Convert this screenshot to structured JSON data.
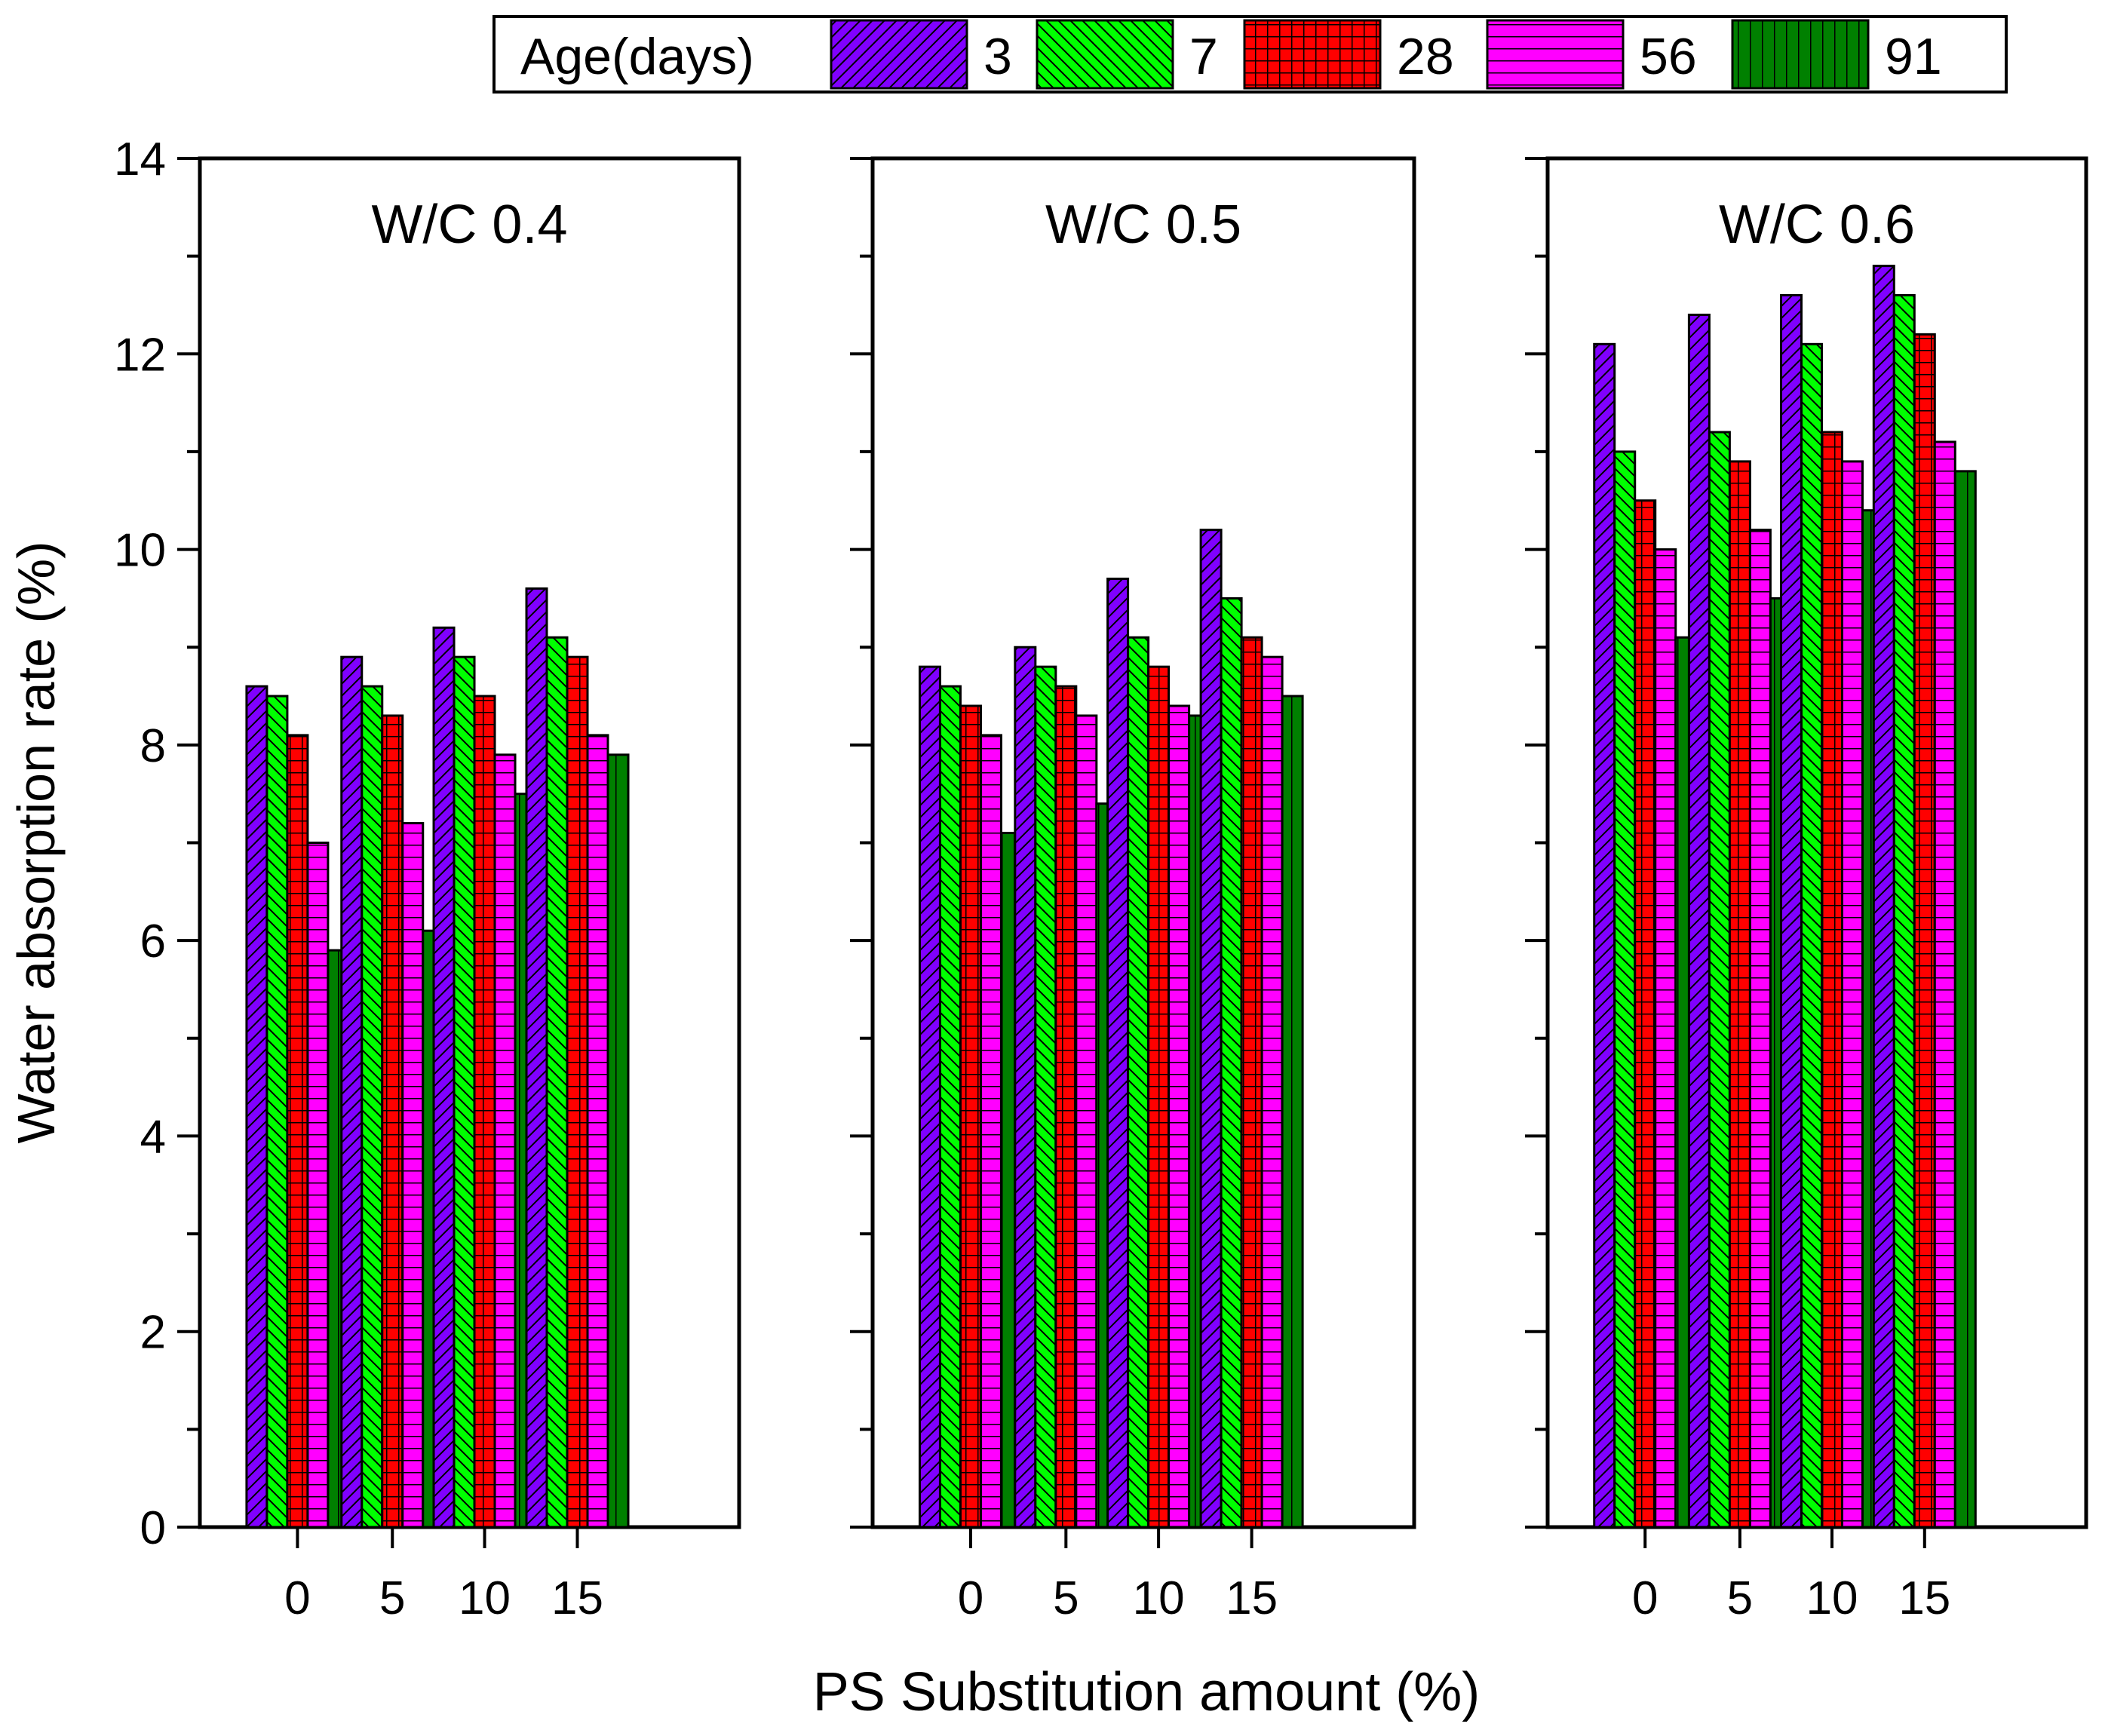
{
  "chart_data": {
    "type": "bar",
    "ylabel": "Water absorption rate (%)",
    "xlabel": "PS Substitution amount (%)",
    "ylim": [
      0,
      14
    ],
    "yticks": [
      "0",
      "2",
      "4",
      "6",
      "8",
      "10",
      "12",
      "14"
    ],
    "categories": [
      "0",
      "5",
      "10",
      "15"
    ],
    "legend": {
      "title": "Age(days)",
      "placement": "top"
    },
    "series_meta": [
      {
        "name": "3",
        "color": "#8000ff",
        "pattern": "diag-right"
      },
      {
        "name": "7",
        "color": "#00ff00",
        "pattern": "diag-left"
      },
      {
        "name": "28",
        "color": "#ff0000",
        "pattern": "grid"
      },
      {
        "name": "56",
        "color": "#ff00ff",
        "pattern": "horizontal"
      },
      {
        "name": "91",
        "color": "#008000",
        "pattern": "vertical"
      }
    ],
    "panels": [
      {
        "title": "W/C 0.4",
        "series": [
          {
            "name": "3",
            "values": [
              8.6,
              8.9,
              9.2,
              9.6
            ]
          },
          {
            "name": "7",
            "values": [
              8.5,
              8.6,
              8.9,
              9.1
            ]
          },
          {
            "name": "28",
            "values": [
              8.1,
              8.3,
              8.5,
              8.9
            ]
          },
          {
            "name": "56",
            "values": [
              7.0,
              7.2,
              7.9,
              8.1
            ]
          },
          {
            "name": "91",
            "values": [
              5.9,
              6.1,
              7.5,
              7.9
            ]
          }
        ]
      },
      {
        "title": "W/C 0.5",
        "series": [
          {
            "name": "3",
            "values": [
              8.8,
              9.0,
              9.7,
              10.2
            ]
          },
          {
            "name": "7",
            "values": [
              8.6,
              8.8,
              9.1,
              9.5
            ]
          },
          {
            "name": "28",
            "values": [
              8.4,
              8.6,
              8.8,
              9.1
            ]
          },
          {
            "name": "56",
            "values": [
              8.1,
              8.3,
              8.4,
              8.9
            ]
          },
          {
            "name": "91",
            "values": [
              7.1,
              7.4,
              8.3,
              8.5
            ]
          }
        ]
      },
      {
        "title": "W/C 0.6",
        "series": [
          {
            "name": "3",
            "values": [
              12.1,
              12.4,
              12.6,
              12.9
            ]
          },
          {
            "name": "7",
            "values": [
              11.0,
              11.2,
              12.1,
              12.6
            ]
          },
          {
            "name": "28",
            "values": [
              10.5,
              10.9,
              11.2,
              12.2
            ]
          },
          {
            "name": "56",
            "values": [
              10.0,
              10.2,
              10.9,
              11.1
            ]
          },
          {
            "name": "91",
            "values": [
              9.1,
              9.5,
              10.4,
              10.8
            ]
          }
        ]
      }
    ]
  }
}
